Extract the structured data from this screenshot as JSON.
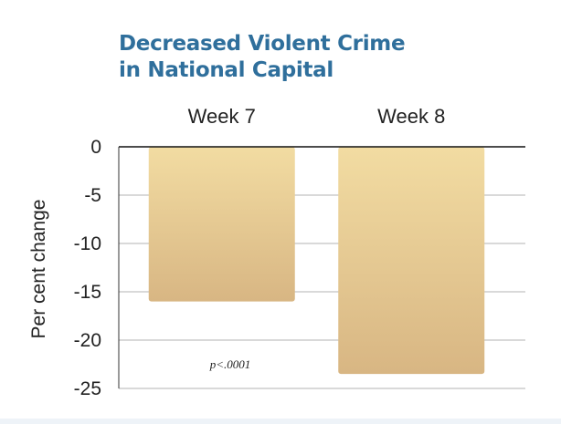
{
  "chart_data": {
    "type": "bar",
    "title": [
      "Decreased Violent Crime",
      "in National Capital"
    ],
    "categories": [
      "Week 7",
      "Week 8"
    ],
    "values": [
      -16,
      -23.5
    ],
    "ylabel": "Per cent change",
    "ylim": [
      -25,
      0
    ],
    "yticks": [
      0,
      -5,
      -10,
      -15,
      -20,
      -25
    ],
    "ytick_labels": [
      "0",
      "-5",
      "-10",
      "-15",
      "-20",
      "-25"
    ],
    "category_position": "top",
    "grid": true,
    "annotation": "p<.0001",
    "bar_colors": [
      "#f2dca2",
      "#d8b683"
    ],
    "title_color": "#2f6f9c"
  }
}
